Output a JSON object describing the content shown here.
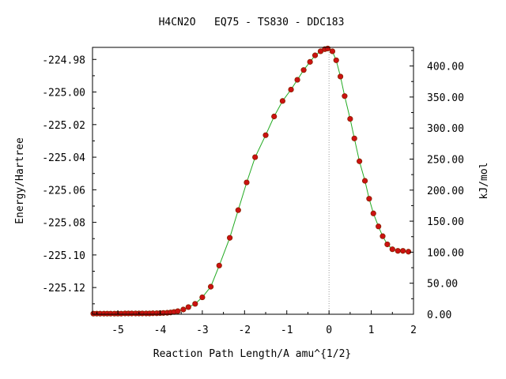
{
  "chart_data": {
    "type": "scatter",
    "title": "H4CN2O   EQ75 - TS830 - DDC183",
    "xlabel": "Reaction Path Length/A amu^{1/2}",
    "ylabel_left": "Energy/Hartree",
    "ylabel_right": "kJ/mol",
    "xlim": [
      -5.6,
      2.0
    ],
    "ylim": [
      -225.1364,
      -224.9726
    ],
    "ylim_right": [
      0.0,
      430.0
    ],
    "x_ticks": [
      -5,
      -4,
      -3,
      -2,
      -1,
      0,
      1,
      2
    ],
    "x_tick_labels": [
      "-5",
      "-4",
      "-3",
      "-2",
      "-1",
      "0",
      "1",
      "2"
    ],
    "y_ticks": [
      -224.98,
      -225.0,
      -225.02,
      -225.04,
      -225.06,
      -225.08,
      -225.1,
      -225.12
    ],
    "y_tick_labels": [
      "-224.98",
      "-225.00",
      "-225.02",
      "-225.04",
      "-225.06",
      "-225.08",
      "-225.10",
      "-225.12"
    ],
    "y2_ticks": [
      0,
      50,
      100,
      150,
      200,
      250,
      300,
      350,
      400
    ],
    "y2_tick_labels": [
      "0.00",
      "50.00",
      "100.00",
      "150.00",
      "200.00",
      "250.00",
      "300.00",
      "350.00",
      "400.00"
    ],
    "ts_marker_x": 0,
    "grid": false,
    "colors": {
      "line": "#22aa22",
      "marker": "#cc1111",
      "marker_edge": "#882200",
      "ts_line": "#999999"
    },
    "x": [
      -5.58,
      -5.5,
      -5.42,
      -5.33,
      -5.25,
      -5.17,
      -5.08,
      -5.0,
      -4.92,
      -4.83,
      -4.75,
      -4.67,
      -4.58,
      -4.5,
      -4.42,
      -4.33,
      -4.25,
      -4.17,
      -4.08,
      -4.0,
      -3.92,
      -3.83,
      -3.75,
      -3.67,
      -3.58,
      -3.45,
      -3.33,
      -3.17,
      -3.0,
      -2.8,
      -2.6,
      -2.35,
      -2.15,
      -1.95,
      -1.75,
      -1.5,
      -1.3,
      -1.1,
      -0.9,
      -0.75,
      -0.6,
      -0.45,
      -0.33,
      -0.2,
      -0.1,
      -0.03,
      0.08,
      0.17,
      0.27,
      0.37,
      0.5,
      0.6,
      0.72,
      0.85,
      0.95,
      1.05,
      1.17,
      1.27,
      1.38,
      1.5,
      1.63,
      1.75,
      1.88
    ],
    "y": [
      -225.136,
      -225.136,
      -225.136,
      -225.136,
      -225.136,
      -225.136,
      -225.136,
      -225.136,
      -225.136,
      -225.1359,
      -225.1359,
      -225.1359,
      -225.1359,
      -225.1359,
      -225.1359,
      -225.1359,
      -225.1359,
      -225.1358,
      -225.1358,
      -225.1357,
      -225.1356,
      -225.1355,
      -225.1353,
      -225.135,
      -225.1345,
      -225.1335,
      -225.132,
      -225.13,
      -225.126,
      -225.1195,
      -225.1065,
      -225.0895,
      -225.0725,
      -225.0555,
      -225.04,
      -225.0265,
      -225.015,
      -225.0055,
      -224.9985,
      -224.9925,
      -224.9865,
      -224.9815,
      -224.9775,
      -224.975,
      -224.9737,
      -224.9733,
      -224.975,
      -224.9805,
      -224.9905,
      -225.0025,
      -225.0165,
      -225.0285,
      -225.0425,
      -225.0545,
      -225.0655,
      -225.0745,
      -225.0825,
      -225.0885,
      -225.0935,
      -225.0965,
      -225.0975,
      -225.0975,
      -225.098
    ]
  }
}
